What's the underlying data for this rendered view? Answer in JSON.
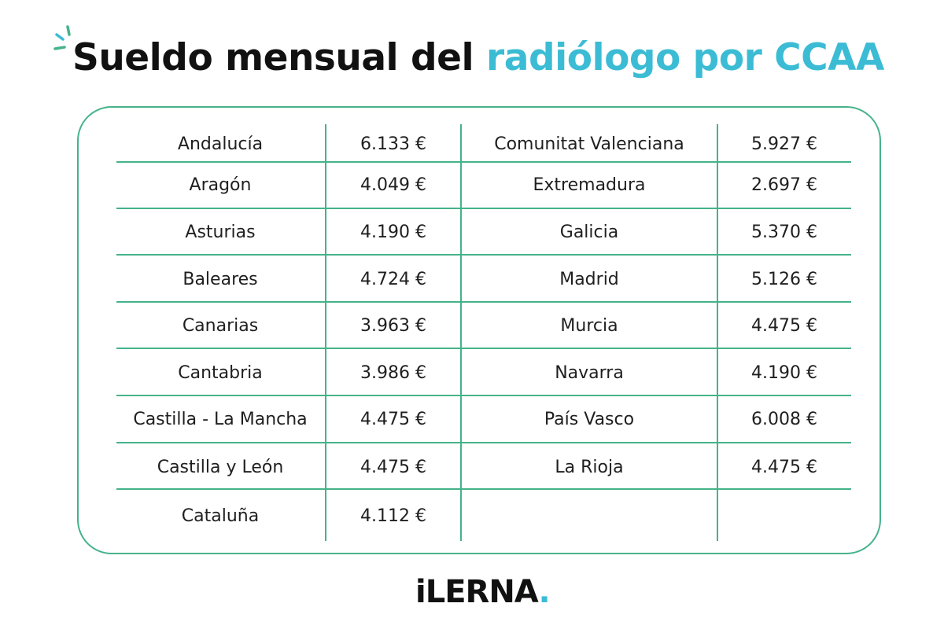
{
  "title": {
    "part1": "Sueldo mensual del",
    "part2": "radiólogo por CCAA"
  },
  "colors": {
    "accent": "#3bbcd4",
    "border": "#45b38a",
    "text": "#111111"
  },
  "table": {
    "left": [
      {
        "region": "Andalucía",
        "salary": "6.133 €"
      },
      {
        "region": "Aragón",
        "salary": "4.049 €"
      },
      {
        "region": "Asturias",
        "salary": "4.190 €"
      },
      {
        "region": "Baleares",
        "salary": "4.724 €"
      },
      {
        "region": "Canarias",
        "salary": "3.963 €"
      },
      {
        "region": "Cantabria",
        "salary": "3.986 €"
      },
      {
        "region": "Castilla - La Mancha",
        "salary": "4.475 €"
      },
      {
        "region": "Castilla y León",
        "salary": "4.475 €"
      },
      {
        "region": "Cataluña",
        "salary": "4.112 €"
      }
    ],
    "right": [
      {
        "region": "Comunitat Valenciana",
        "salary": "5.927 €"
      },
      {
        "region": "Extremadura",
        "salary": "2.697 €"
      },
      {
        "region": "Galicia",
        "salary": "5.370 €"
      },
      {
        "region": "Madrid",
        "salary": "5.126 €"
      },
      {
        "region": "Murcia",
        "salary": "4.475 €"
      },
      {
        "region": "Navarra",
        "salary": "4.190 €"
      },
      {
        "region": "País Vasco",
        "salary": "6.008 €"
      },
      {
        "region": "La Rioja",
        "salary": "4.475 €"
      }
    ]
  },
  "logo": {
    "text": "iLERNA",
    "dot": "."
  }
}
